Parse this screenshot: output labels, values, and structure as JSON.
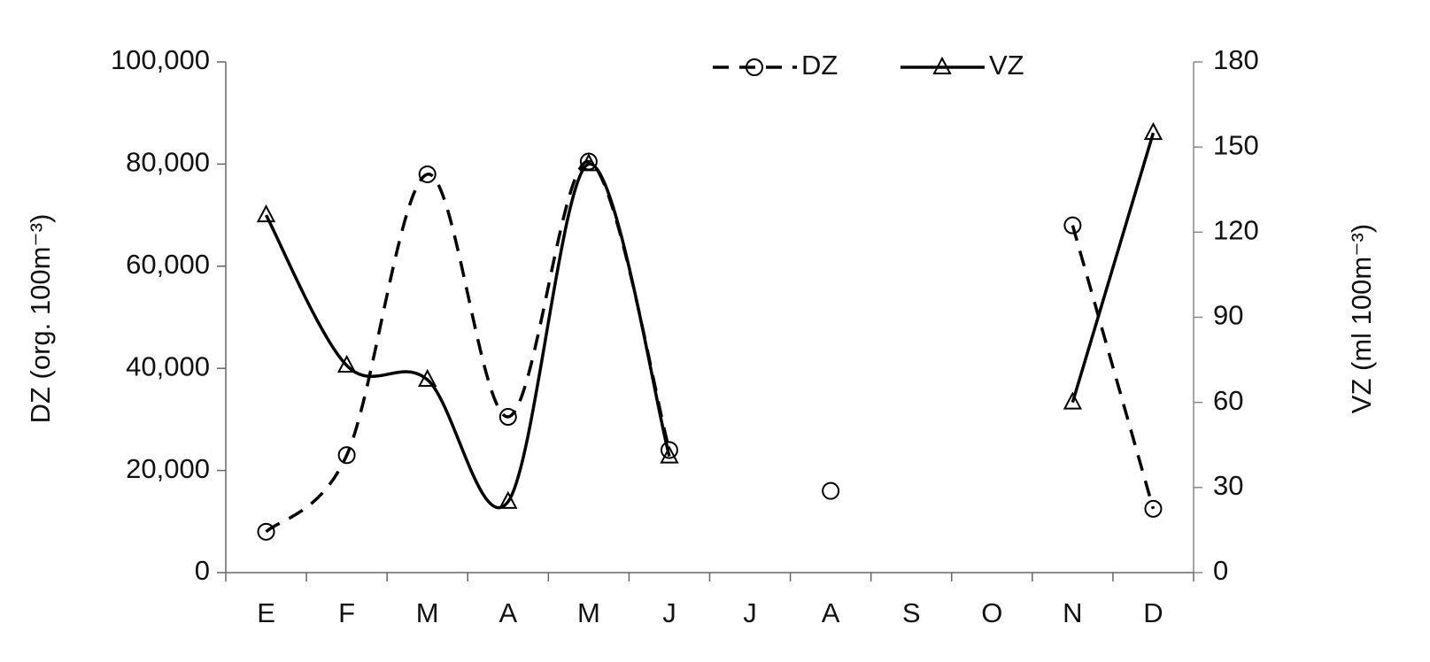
{
  "chart_data": {
    "type": "line",
    "categories": [
      "E",
      "F",
      "M",
      "A",
      "M",
      "J",
      "J",
      "A",
      "S",
      "O",
      "N",
      "D"
    ],
    "y_label": "DZ  (org. 100m⁻³)",
    "y2_label": "VZ (ml 100m⁻³)",
    "ylim": [
      0,
      100000
    ],
    "yticks": [
      0,
      {
        "value": 20000,
        "label": "20,000"
      },
      {
        "value": 40000,
        "label": "40,000"
      },
      {
        "value": 60000,
        "label": "60,000"
      },
      {
        "value": 80000,
        "label": "80,000"
      },
      {
        "value": 100000,
        "label": "100,000"
      }
    ],
    "y2lim": [
      0,
      180
    ],
    "y2ticks": [
      0,
      30,
      60,
      90,
      120,
      150,
      180
    ],
    "legend": "top",
    "series": [
      {
        "name": "DZ",
        "color": "#000000",
        "line_style": "dashed",
        "marker": "circle",
        "values": [
          8000,
          23000,
          78000,
          30500,
          80500,
          24000,
          null,
          16000,
          null,
          null,
          68000,
          12500
        ]
      },
      {
        "name": "VZ",
        "color": "#000000",
        "line_style": "solid",
        "marker": "triangle",
        "axis": "y2",
        "values": [
          126,
          73,
          68,
          25,
          144,
          41,
          null,
          null,
          null,
          null,
          60,
          155
        ]
      }
    ]
  }
}
